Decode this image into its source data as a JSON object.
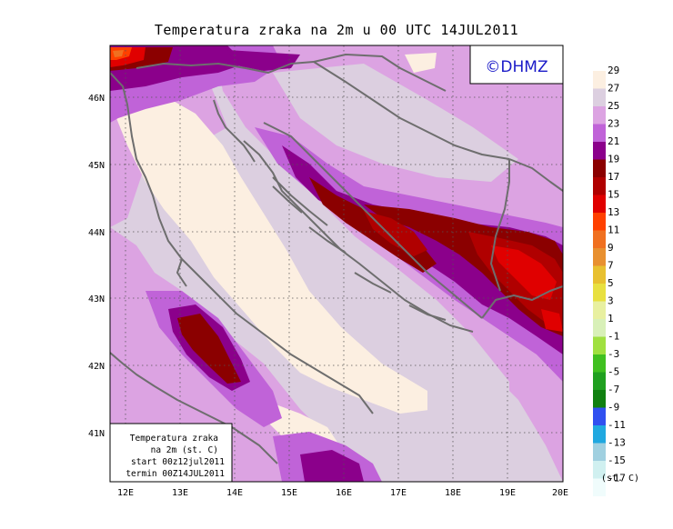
{
  "title": "Temperatura zraka na 2m u 00 UTC 14JUL2011",
  "logo": "©DHMZ",
  "info_box": [
    "Temperatura zraka",
    "na 2m (st. C)",
    "start 00z12jul2011",
    "termin 00Z14JUL2011"
  ],
  "lat_ticks": [
    "46N",
    "45N",
    "44N",
    "43N",
    "42N",
    "41N"
  ],
  "lon_ticks": [
    "12E",
    "13E",
    "14E",
    "15E",
    "16E",
    "17E",
    "18E",
    "19E",
    "20E"
  ],
  "legend": {
    "unit": "(st. C)",
    "labels": [
      "29",
      "27",
      "25",
      "23",
      "21",
      "19",
      "17",
      "15",
      "13",
      "11",
      "9",
      "7",
      "5",
      "3",
      "1",
      "-1",
      "-3",
      "-5",
      "-7",
      "-9",
      "-11",
      "-13",
      "-15",
      "-17"
    ],
    "colors": [
      "#fcefe1",
      "#dccfe0",
      "#dca3e2",
      "#c063d8",
      "#8b008b",
      "#8b0000",
      "#b00000",
      "#e00000",
      "#ff4000",
      "#f07020",
      "#e89030",
      "#e8c030",
      "#e8e040",
      "#e8f0a0",
      "#d8f0b8",
      "#a0e040",
      "#40c020",
      "#20a020",
      "#108010",
      "#3050f0",
      "#20a8e0",
      "#a0d0e0",
      "#d0f0f0",
      "#f0fcfc"
    ]
  },
  "map_colors": {
    "warm_29": "#fcefe1",
    "c27": "#dccfe0",
    "c25": "#dca3e2",
    "c23": "#c063d8",
    "c21": "#8b008b",
    "c19": "#8b0000",
    "c17": "#b00000",
    "c15": "#e00000",
    "c13": "#ff4000",
    "c11": "#f07020",
    "c9": "#e89030",
    "coast": "#6e6e6e"
  }
}
